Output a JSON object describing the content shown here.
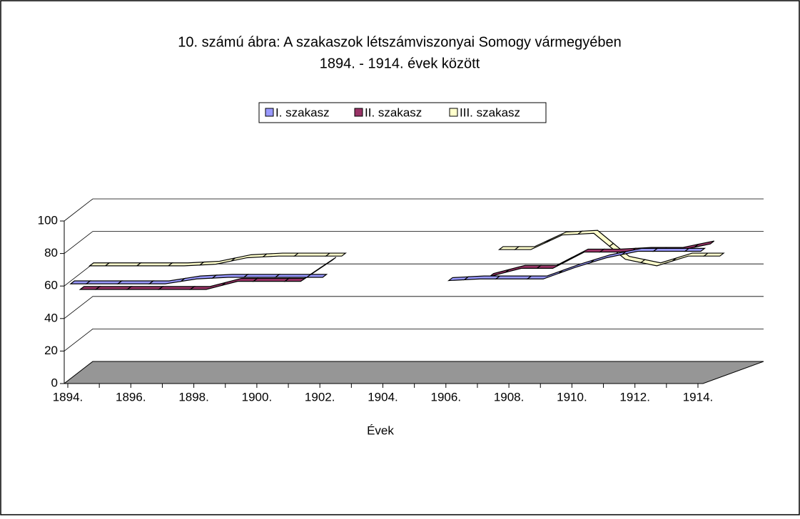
{
  "chart_data": {
    "type": "line3d",
    "title": [
      "10. számú ábra: A szakaszok létszámviszonyai Somogy vármegyében",
      "1894. - 1914. évek között"
    ],
    "x_label": "Évek",
    "categories": [
      "1894.",
      null,
      "1896.",
      null,
      "1898.",
      null,
      "1900.",
      null,
      "1902.",
      null,
      "1904.",
      null,
      "1906.",
      null,
      "1908.",
      null,
      "1910.",
      null,
      "1912.",
      null,
      "1914."
    ],
    "series": [
      {
        "name": "I. szakasz",
        "color": "#9999ff",
        "values": [
          60,
          60,
          60,
          60,
          63,
          64,
          64,
          64,
          64,
          null,
          null,
          null,
          62,
          63,
          63,
          63,
          70,
          76,
          80,
          80,
          80
        ]
      },
      {
        "name": "II. szakasz",
        "color": "#993366",
        "values": [
          52,
          52,
          52,
          52,
          52,
          57,
          57,
          57,
          70,
          null,
          null,
          null,
          null,
          60,
          65,
          65,
          75,
          75,
          76,
          76,
          80
        ]
      },
      {
        "name": "III. szakasz",
        "color": "#ffffcc",
        "values": [
          62,
          62,
          62,
          62,
          63,
          67,
          68,
          68,
          68,
          null,
          null,
          null,
          null,
          72,
          72,
          81,
          82,
          66,
          62,
          68,
          68
        ]
      }
    ],
    "ylim": [
      0,
      100
    ],
    "yticks": [
      0,
      20,
      40,
      60,
      80,
      100
    ],
    "grid": true,
    "floor_color": "#969696"
  }
}
